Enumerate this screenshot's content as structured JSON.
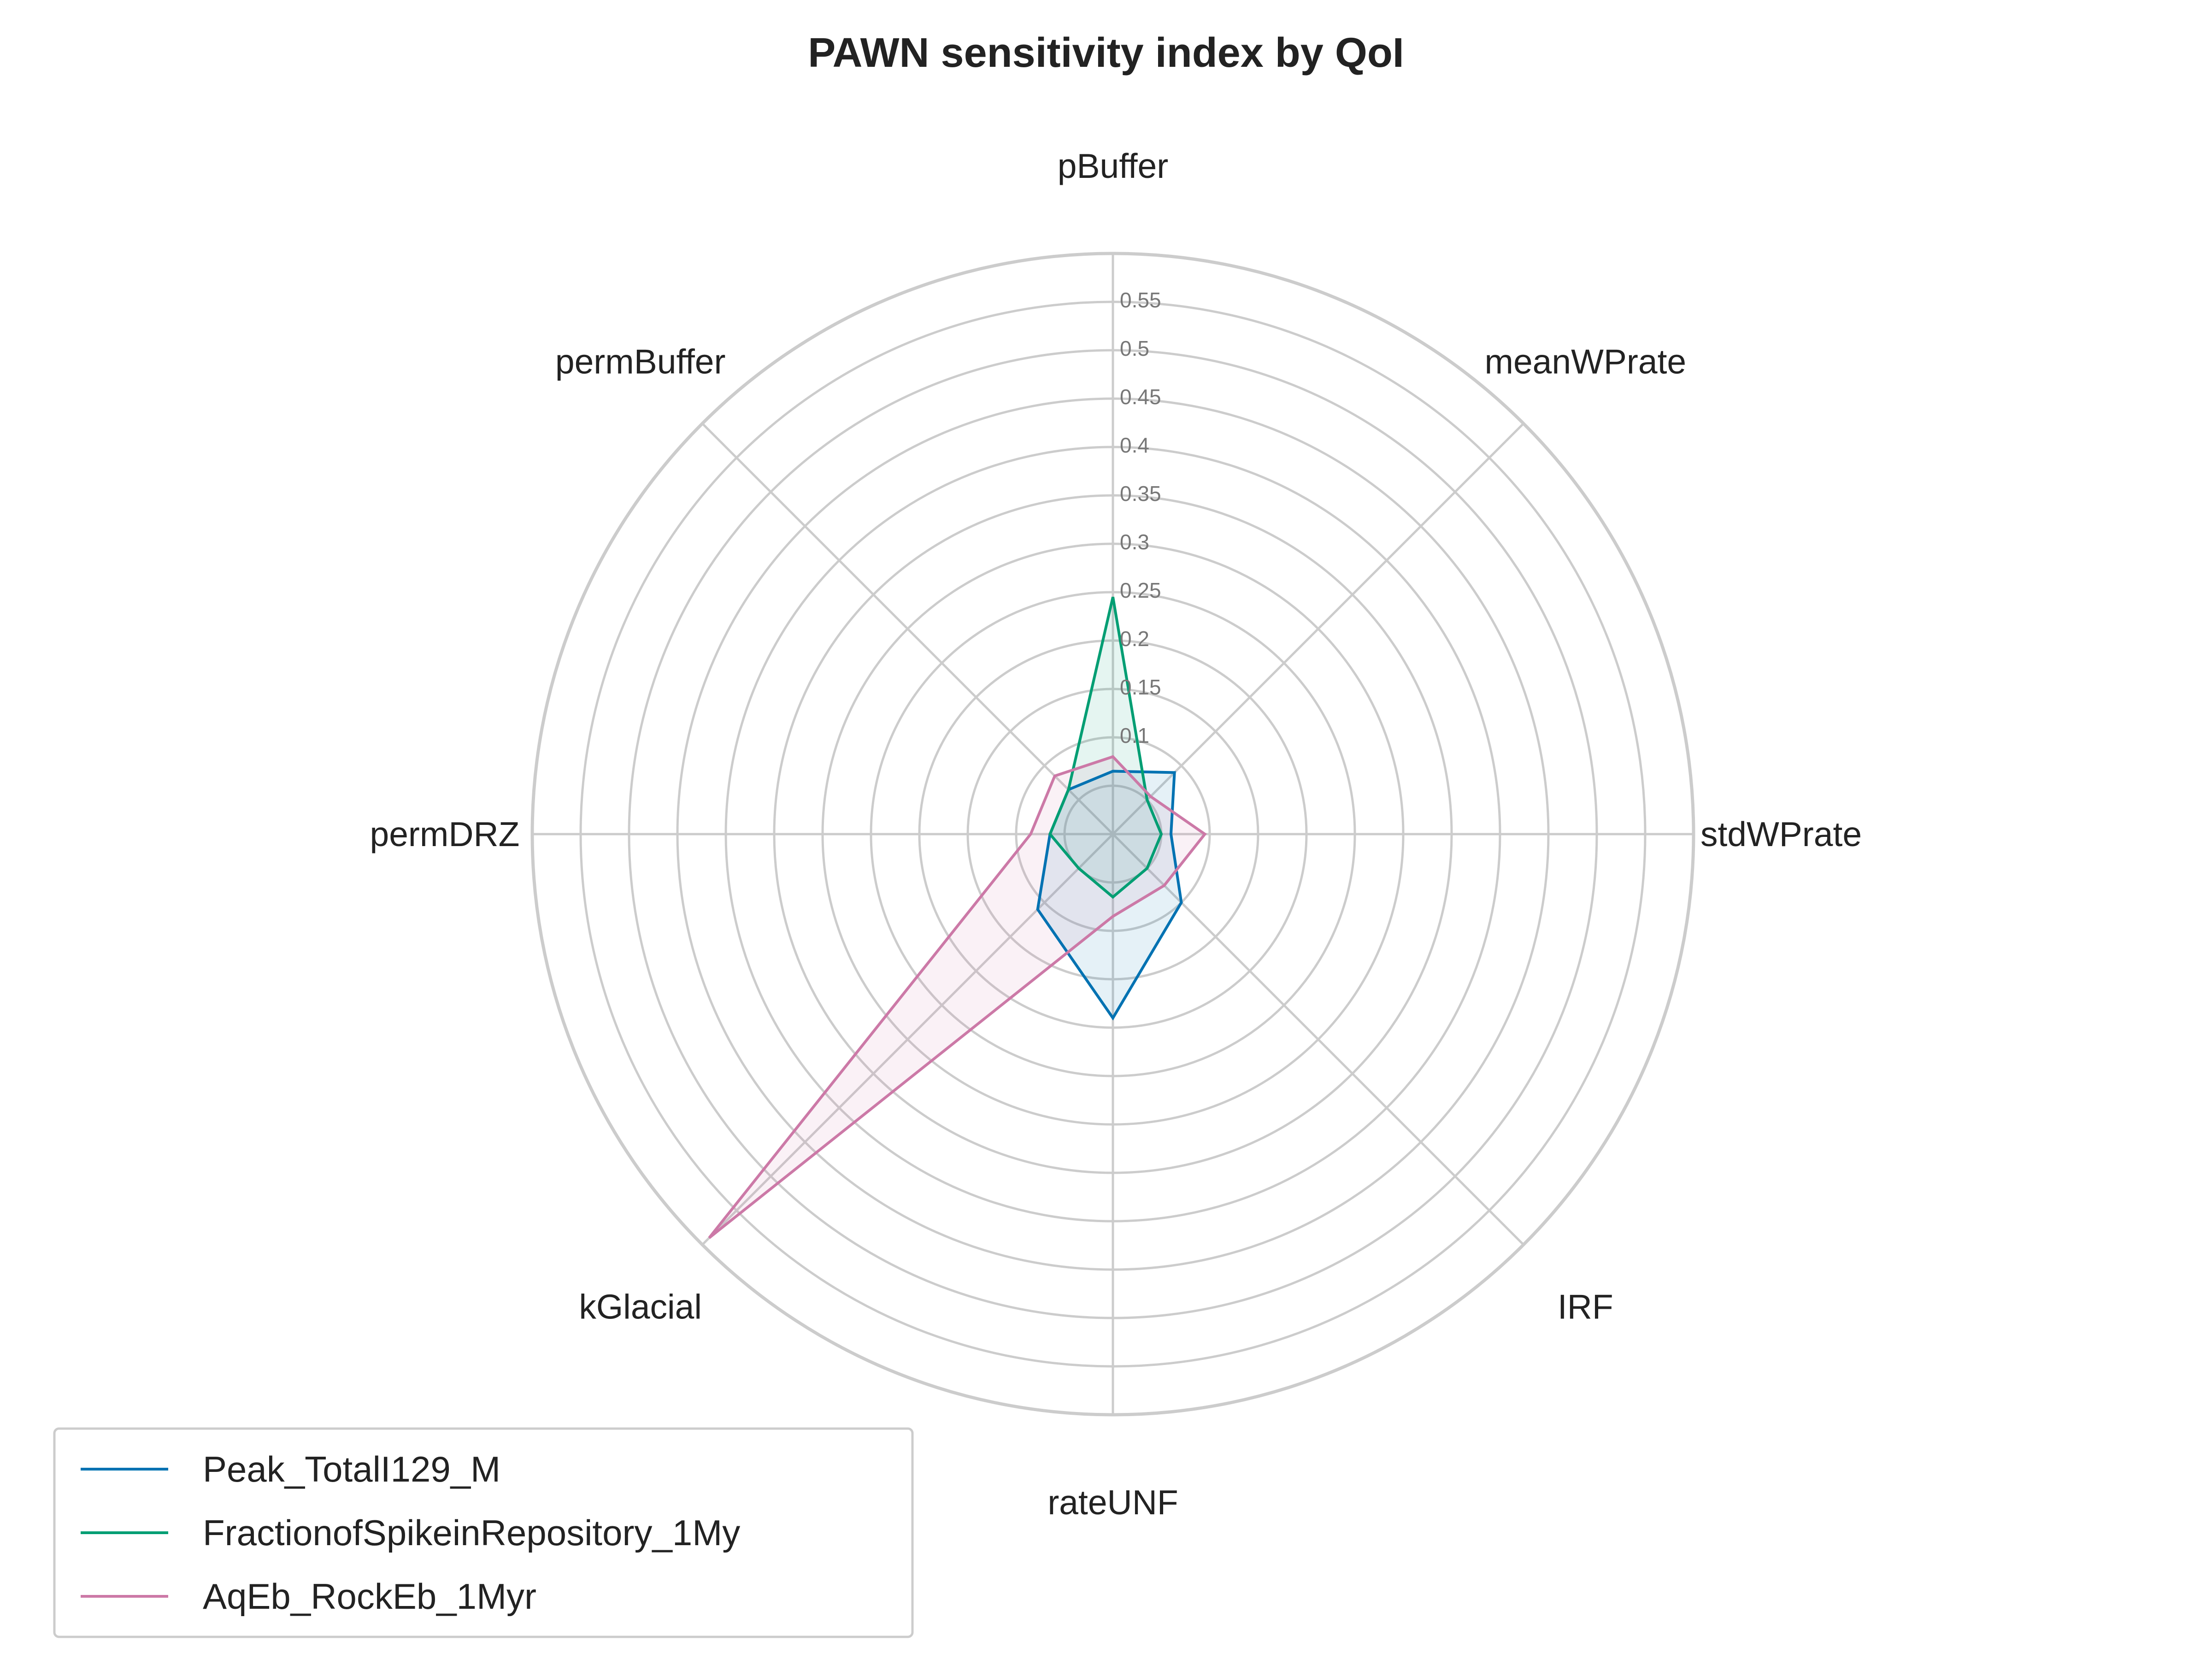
{
  "chart_data": {
    "type": "radar",
    "title": "PAWN sensitivity index by QoI",
    "axes": [
      "pBuffer",
      "meanWPrate",
      "stdWPrate",
      "IRF",
      "rateUNF",
      "kGlacial",
      "permDRZ",
      "permBuffer"
    ],
    "rlim": [
      0,
      0.6
    ],
    "rticks": [
      0.1,
      0.15,
      0.2,
      0.25,
      0.3,
      0.35,
      0.4,
      0.45,
      0.5,
      0.55
    ],
    "rtick_labels": [
      "0.1",
      "0.15",
      "0.2",
      "0.25",
      "0.3",
      "0.35",
      "0.4",
      "0.45",
      "0.5",
      "0.55"
    ],
    "grid": true,
    "legend_position": "lower-left",
    "series": [
      {
        "name": "Peak_TotalI129_M",
        "color": "#0072B2",
        "values": [
          0.065,
          0.09,
          0.06,
          0.1,
          0.19,
          0.11,
          0.065,
          0.065
        ]
      },
      {
        "name": "FractionofSpikeinRepository_1My",
        "color": "#009E73",
        "values": [
          0.245,
          0.05,
          0.05,
          0.05,
          0.065,
          0.05,
          0.065,
          0.065
        ]
      },
      {
        "name": "AqEb_RockEb_1Myr",
        "color": "#CC79A7",
        "values": [
          0.08,
          0.055,
          0.095,
          0.075,
          0.085,
          0.59,
          0.085,
          0.085
        ]
      }
    ]
  }
}
